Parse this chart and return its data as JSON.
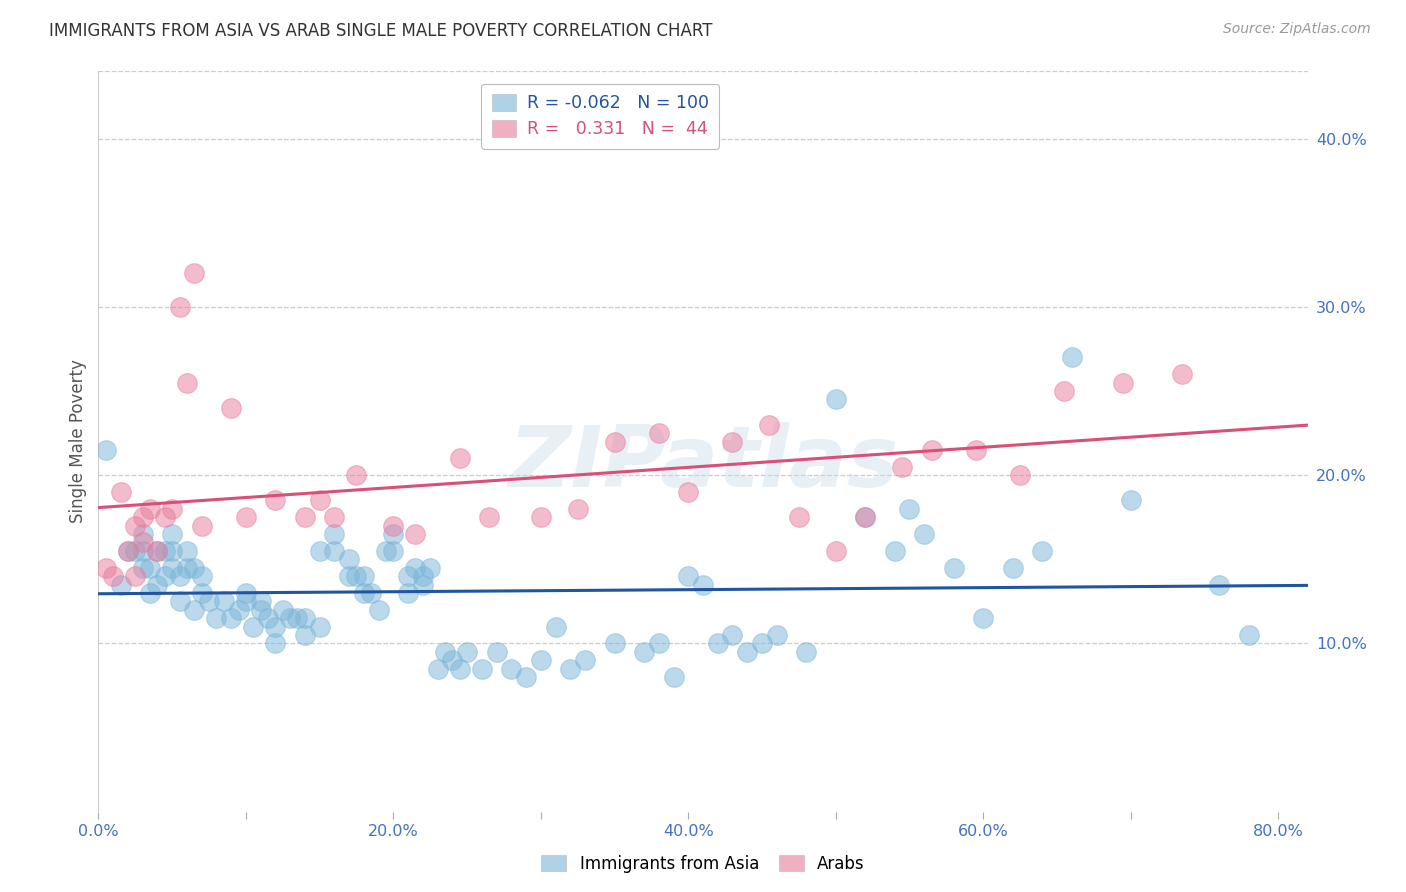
{
  "title": "IMMIGRANTS FROM ASIA VS ARAB SINGLE MALE POVERTY CORRELATION CHART",
  "source": "Source: ZipAtlas.com",
  "ylabel_label": "Single Male Poverty",
  "watermark": "ZIPatlas",
  "xlim": [
    0.0,
    0.82
  ],
  "ylim": [
    0.0,
    0.44
  ],
  "xticks": [
    0.0,
    0.1,
    0.2,
    0.3,
    0.4,
    0.5,
    0.6,
    0.7,
    0.8
  ],
  "xticklabels": [
    "0.0%",
    "",
    "20.0%",
    "",
    "40.0%",
    "",
    "60.0%",
    "",
    "80.0%"
  ],
  "yticks_right": [
    0.1,
    0.2,
    0.3,
    0.4
  ],
  "yticklabels_right": [
    "10.0%",
    "20.0%",
    "30.0%",
    "40.0%"
  ],
  "blue_color": "#7ab5d8",
  "pink_color": "#e87a9a",
  "blue_line_color": "#2155a0",
  "pink_line_color": "#d94f78",
  "grid_color": "#cccccc",
  "axis_color": "#4472c4",
  "R_blue": -0.062,
  "N_blue": 100,
  "R_pink": 0.331,
  "N_pink": 44,
  "blue_x": [
    0.005,
    0.015,
    0.02,
    0.025,
    0.03,
    0.03,
    0.03,
    0.035,
    0.035,
    0.04,
    0.04,
    0.045,
    0.045,
    0.05,
    0.05,
    0.05,
    0.055,
    0.055,
    0.06,
    0.06,
    0.065,
    0.065,
    0.07,
    0.07,
    0.075,
    0.08,
    0.085,
    0.09,
    0.095,
    0.1,
    0.1,
    0.105,
    0.11,
    0.11,
    0.115,
    0.12,
    0.12,
    0.125,
    0.13,
    0.135,
    0.14,
    0.14,
    0.15,
    0.15,
    0.16,
    0.16,
    0.17,
    0.17,
    0.175,
    0.18,
    0.18,
    0.185,
    0.19,
    0.195,
    0.2,
    0.2,
    0.21,
    0.21,
    0.215,
    0.22,
    0.22,
    0.225,
    0.23,
    0.235,
    0.24,
    0.245,
    0.25,
    0.26,
    0.27,
    0.28,
    0.29,
    0.3,
    0.31,
    0.32,
    0.33,
    0.35,
    0.37,
    0.38,
    0.39,
    0.4,
    0.41,
    0.42,
    0.43,
    0.44,
    0.45,
    0.46,
    0.48,
    0.5,
    0.52,
    0.54,
    0.55,
    0.56,
    0.58,
    0.6,
    0.62,
    0.64,
    0.66,
    0.7,
    0.76,
    0.78
  ],
  "blue_y": [
    0.215,
    0.135,
    0.155,
    0.155,
    0.145,
    0.155,
    0.165,
    0.13,
    0.145,
    0.135,
    0.155,
    0.14,
    0.155,
    0.145,
    0.155,
    0.165,
    0.125,
    0.14,
    0.145,
    0.155,
    0.12,
    0.145,
    0.13,
    0.14,
    0.125,
    0.115,
    0.125,
    0.115,
    0.12,
    0.125,
    0.13,
    0.11,
    0.12,
    0.125,
    0.115,
    0.1,
    0.11,
    0.12,
    0.115,
    0.115,
    0.105,
    0.115,
    0.11,
    0.155,
    0.155,
    0.165,
    0.14,
    0.15,
    0.14,
    0.13,
    0.14,
    0.13,
    0.12,
    0.155,
    0.155,
    0.165,
    0.14,
    0.13,
    0.145,
    0.14,
    0.135,
    0.145,
    0.085,
    0.095,
    0.09,
    0.085,
    0.095,
    0.085,
    0.095,
    0.085,
    0.08,
    0.09,
    0.11,
    0.085,
    0.09,
    0.1,
    0.095,
    0.1,
    0.08,
    0.14,
    0.135,
    0.1,
    0.105,
    0.095,
    0.1,
    0.105,
    0.095,
    0.245,
    0.175,
    0.155,
    0.18,
    0.165,
    0.145,
    0.115,
    0.145,
    0.155,
    0.27,
    0.185,
    0.135,
    0.105
  ],
  "pink_x": [
    0.005,
    0.01,
    0.015,
    0.02,
    0.025,
    0.025,
    0.03,
    0.03,
    0.035,
    0.04,
    0.045,
    0.05,
    0.055,
    0.06,
    0.065,
    0.07,
    0.09,
    0.1,
    0.12,
    0.14,
    0.15,
    0.16,
    0.175,
    0.2,
    0.215,
    0.245,
    0.265,
    0.3,
    0.325,
    0.35,
    0.38,
    0.4,
    0.43,
    0.455,
    0.475,
    0.5,
    0.52,
    0.545,
    0.565,
    0.595,
    0.625,
    0.655,
    0.695,
    0.735
  ],
  "pink_y": [
    0.145,
    0.14,
    0.19,
    0.155,
    0.17,
    0.14,
    0.175,
    0.16,
    0.18,
    0.155,
    0.175,
    0.18,
    0.3,
    0.255,
    0.32,
    0.17,
    0.24,
    0.175,
    0.185,
    0.175,
    0.185,
    0.175,
    0.2,
    0.17,
    0.165,
    0.21,
    0.175,
    0.175,
    0.18,
    0.22,
    0.225,
    0.19,
    0.22,
    0.23,
    0.175,
    0.155,
    0.175,
    0.205,
    0.215,
    0.215,
    0.2,
    0.25,
    0.255,
    0.26
  ]
}
